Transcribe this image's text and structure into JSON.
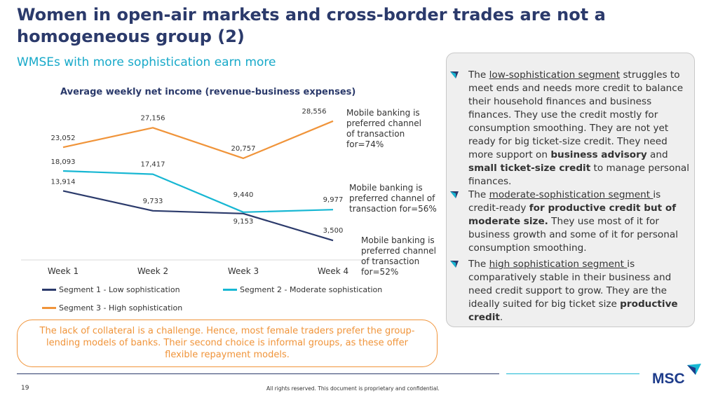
{
  "title": "Women in open-air markets and cross-border trades are not a homogeneous group (2)",
  "subtitle": "WMSEs with more sophistication earn more",
  "chart_title": "Average weekly net income (revenue-business expenses)",
  "chart_data": {
    "type": "line",
    "categories": [
      "Week 1",
      "Week 2",
      "Week 3",
      "Week 4"
    ],
    "series": [
      {
        "name": "Segment 1 - Low sophistication",
        "values": [
          13914,
          9733,
          9153,
          3500
        ],
        "labels": [
          "13,914",
          "9,733",
          "9,153",
          "3,500"
        ],
        "color": "#2b3a6b"
      },
      {
        "name": "Segment 2 - Moderate sophistication",
        "values": [
          18093,
          17417,
          9440,
          9977
        ],
        "labels": [
          "18,093",
          "17,417",
          "9,440",
          "9,977"
        ],
        "color": "#17b7d3"
      },
      {
        "name": "Segment 3 - High sophistication",
        "values": [
          23052,
          27156,
          20757,
          28556
        ],
        "labels": [
          "23,052",
          "27,156",
          "20,757",
          "28,556"
        ],
        "color": "#f0943a"
      }
    ],
    "annotations": [
      "Mobile banking is preferred channel of transaction for=74%",
      "Mobile banking is preferred channel of transaction for=56%",
      "Mobile banking is preferred channel of transaction for=52%"
    ]
  },
  "notes": {
    "high_lines": [
      "Mobile banking is",
      "preferred channel",
      "of transaction",
      "for=74%"
    ],
    "moderate_lines": [
      "Mobile banking is",
      "preferred channel of",
      "transaction for=56%"
    ],
    "low_lines": [
      "Mobile banking is",
      "preferred channel",
      "of transaction",
      "for=52%"
    ]
  },
  "callout": "The lack of collateral is a challenge. Hence, most female traders prefer the group-lending models of banks. Their second choice is informal groups, as these offer flexible repayment models.",
  "panel": {
    "low": {
      "pre": "The ",
      "seg": "low-sophistication segment",
      "t1": " struggles to meet ends and needs more credit to balance their household finances and business finances. They use the credit mostly for consumption smoothing. They are not yet ready for big ticket-size credit. They need more support on ",
      "b1": "business advisory",
      "t2": " and ",
      "b2": "small ticket-size credit",
      "t3": " to manage personal finances."
    },
    "moderate": {
      "pre": "The ",
      "seg": "moderate-sophistication segment ",
      "t1": "is credit-ready ",
      "b1": "for productive credit but of moderate size.",
      "t2": " They use most of it for business growth and some of it for personal consumption smoothing."
    },
    "high": {
      "pre": "The ",
      "seg": "high sophistication segment ",
      "t1": "is comparatively stable in their business and need credit support to grow. They are the ideally suited for big ticket size ",
      "b1": "productive credit",
      "t2": "."
    }
  },
  "footer": {
    "page": "19",
    "copyright": "All rights reserved. This document is proprietary and confidential.",
    "logo": "MSC"
  },
  "colors": {
    "navy": "#2b3a6b",
    "cyan": "#17b7d3",
    "orange": "#f0943a"
  }
}
